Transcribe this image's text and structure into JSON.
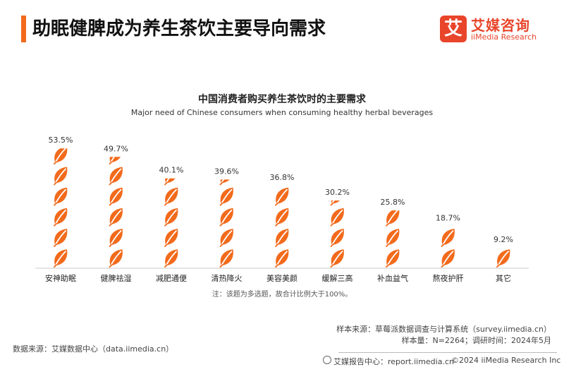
{
  "page": {
    "title": "助眠健脾成为养生茶饮主要导向需求"
  },
  "brand": {
    "logo_char": "艾",
    "name_cn": "艾媒咨询",
    "name_en": "iiMedia Research",
    "color": "#e8452b"
  },
  "accent_color": "#f26a1b",
  "chart_data": {
    "type": "bar",
    "title": "中国消费者购买养生茶饮时的主要需求",
    "subtitle": "Major need of Chinese consumers when consuming healthy herbal beverages",
    "categories": [
      "安神助眠",
      "健脾祛湿",
      "减肥通便",
      "清热降火",
      "美容美颜",
      "缓解三高",
      "补血益气",
      "熬夜护肝",
      "其它"
    ],
    "values": [
      53.5,
      49.7,
      40.1,
      39.6,
      36.8,
      30.2,
      25.8,
      18.7,
      9.2
    ],
    "value_labels": [
      "53.5%",
      "49.7%",
      "40.1%",
      "39.6%",
      "36.8%",
      "30.2%",
      "25.8%",
      "18.7%",
      "9.2%"
    ],
    "unit": "%",
    "ylim": [
      0,
      55
    ],
    "mark": "leaf-icon-stack",
    "bar_color": "#f26a1b",
    "grid": false,
    "legend": "none"
  },
  "note": "注：该题为多选题，故合计比例大于100%。",
  "source": {
    "sample_source": "样本来源：草莓派数据调查与计算系统（survey.iimedia.cn）",
    "sample_size": "样本量：N=2264；调研时间：2024年5月",
    "data_source": "数据来源：艾媒数据中心（data.iimedia.cn）"
  },
  "footer": {
    "report_center": "艾媒报告中心：report.iimedia.cn",
    "copyright": "©2024  iiMedia Research  Inc"
  }
}
